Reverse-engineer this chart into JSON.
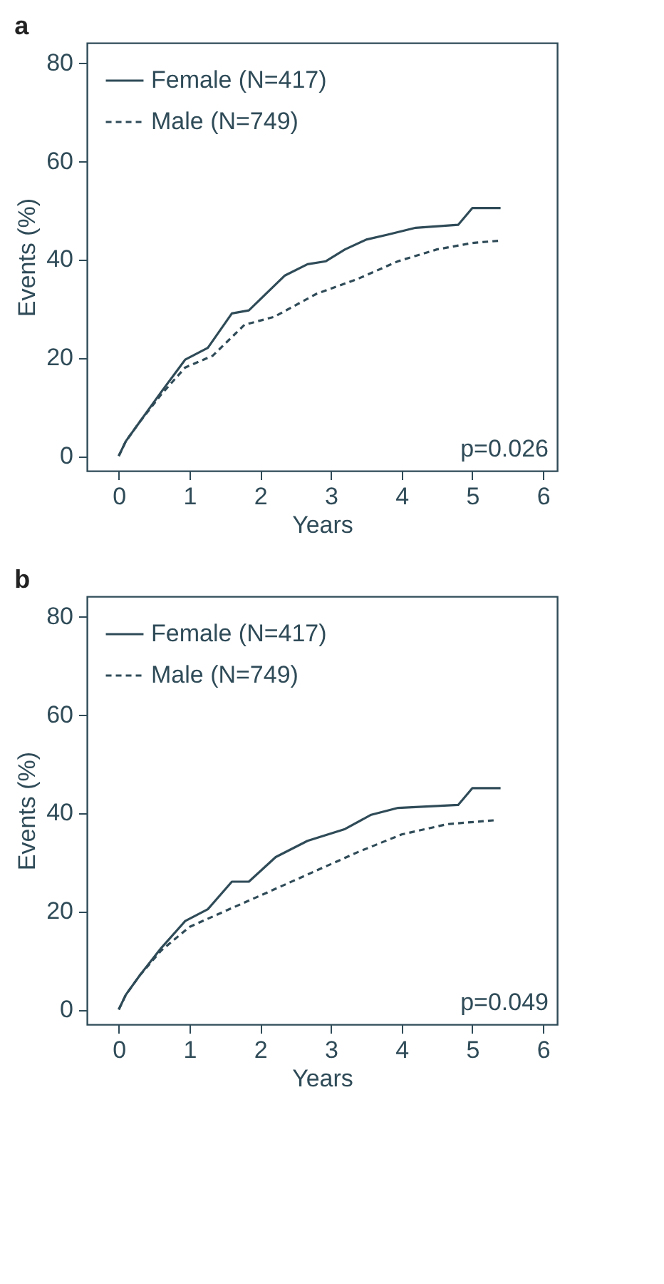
{
  "chart_data": [
    {
      "type": "line",
      "title": "a",
      "xlabel": "Years",
      "ylabel": "Events (%)",
      "xlim": [
        -0.45,
        6.2
      ],
      "ylim": [
        -3,
        84
      ],
      "xticks": [
        0,
        1,
        2,
        3,
        4,
        5,
        6
      ],
      "yticks": [
        0,
        20,
        40,
        60,
        80
      ],
      "grid": false,
      "legend": "top left",
      "annotations": [
        "p=0.026"
      ],
      "series": [
        {
          "name": "Female (N=417)",
          "color": "#2f4b58",
          "line_style": "solid",
          "x": [
            0,
            0.1,
            0.3,
            0.6,
            0.94,
            1.26,
            1.6,
            1.84,
            2.35,
            2.67,
            2.93,
            3.2,
            3.5,
            3.8,
            4.2,
            4.8,
            5.0,
            5.4
          ],
          "values": [
            0,
            3,
            7,
            13,
            19.6,
            22,
            29,
            29.6,
            36.7,
            39,
            39.6,
            42,
            44,
            45,
            46.4,
            47,
            50.4,
            50.4
          ]
        },
        {
          "name": "Male (N=749)",
          "color": "#2f4b58",
          "line_style": "dashed",
          "x": [
            0,
            0.1,
            0.3,
            0.6,
            0.94,
            1.33,
            1.78,
            2.2,
            2.8,
            3.38,
            3.95,
            4.5,
            5.0,
            5.4
          ],
          "values": [
            0,
            3,
            7,
            12.5,
            18,
            20.4,
            26.7,
            28.3,
            33,
            36,
            39.6,
            42,
            43.3,
            43.8
          ]
        }
      ]
    },
    {
      "type": "line",
      "title": "b",
      "xlabel": "Years",
      "ylabel": "Events (%)",
      "xlim": [
        -0.45,
        6.2
      ],
      "ylim": [
        -3,
        84
      ],
      "xticks": [
        0,
        1,
        2,
        3,
        4,
        5,
        6
      ],
      "yticks": [
        0,
        20,
        40,
        60,
        80
      ],
      "grid": false,
      "legend": "top left",
      "annotations": [
        "p=0.049"
      ],
      "series": [
        {
          "name": "Female (N=417)",
          "color": "#2f4b58",
          "line_style": "solid",
          "x": [
            0,
            0.1,
            0.3,
            0.6,
            0.94,
            1.26,
            1.6,
            1.84,
            2.22,
            2.67,
            3.2,
            3.57,
            3.95,
            4.8,
            5.0,
            5.4
          ],
          "values": [
            0,
            3,
            7,
            12.5,
            18,
            20.4,
            26,
            26,
            31,
            34.3,
            36.7,
            39.6,
            41,
            41.6,
            45,
            45
          ]
        },
        {
          "name": "Male (N=749)",
          "color": "#2f4b58",
          "line_style": "dashed",
          "x": [
            0,
            0.1,
            0.3,
            0.6,
            1.0,
            1.5,
            2.1,
            2.74,
            3.38,
            4.0,
            4.65,
            5.33
          ],
          "values": [
            0,
            3,
            7,
            12,
            16.8,
            20,
            23.8,
            27.9,
            32,
            35.6,
            37.7,
            38.5
          ]
        }
      ]
    }
  ]
}
